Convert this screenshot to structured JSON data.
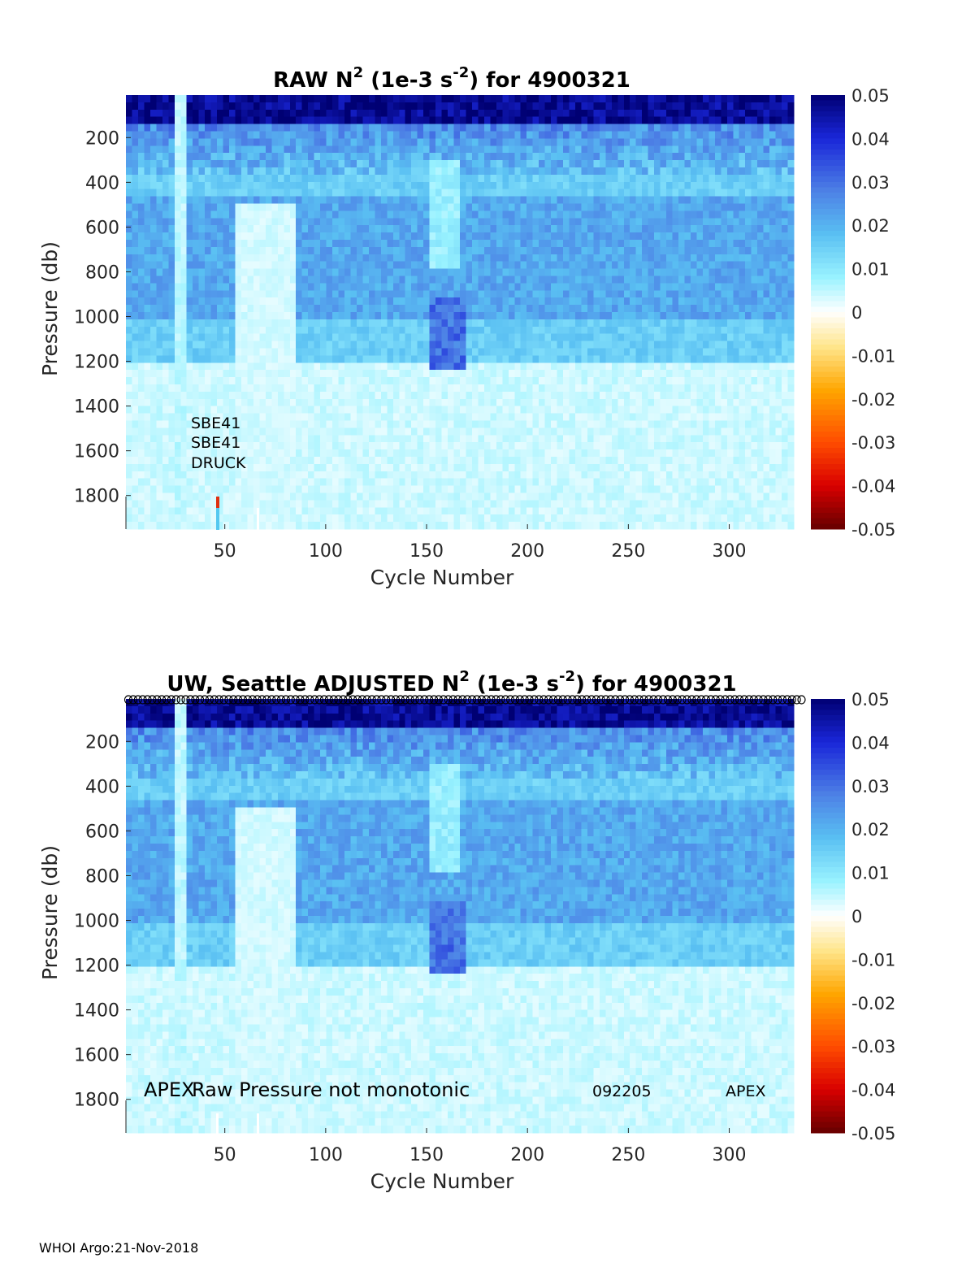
{
  "chart_data": [
    {
      "type": "heatmap",
      "title_main": "RAW N",
      "title_sup": "2",
      "title_units": " (1e-3 s",
      "title_units_sup": "-2",
      "title_tail": ") for 4900321",
      "xlabel": "Cycle Number",
      "ylabel": "Pressure (db)",
      "xlim": [
        1,
        332
      ],
      "ylim": [
        1950,
        10
      ],
      "y_reversed": true,
      "xticks": [
        50,
        100,
        150,
        200,
        250,
        300
      ],
      "yticks": [
        200,
        400,
        600,
        800,
        1000,
        1200,
        1400,
        1600,
        1800
      ],
      "colorbar": {
        "clim": [
          -0.05,
          0.05
        ],
        "ticks": [
          "0.05",
          "0.04",
          "0.03",
          "0.02",
          "0.01",
          "0",
          "-0.01",
          "-0.02",
          "-0.03",
          "-0.04",
          "-0.05"
        ]
      },
      "annotations": [
        "SBE41",
        "SBE41",
        "DRUCK"
      ]
    },
    {
      "type": "heatmap",
      "title_main": "UW, Seattle  ADJUSTED N",
      "title_sup": "2",
      "title_units": " (1e-3 s",
      "title_units_sup": "-2",
      "title_tail": ") for 4900321",
      "xlabel": "Cycle Number",
      "ylabel": "Pressure (db)",
      "xlim": [
        1,
        332
      ],
      "ylim": [
        1950,
        10
      ],
      "y_reversed": true,
      "xticks": [
        50,
        100,
        150,
        200,
        250,
        300
      ],
      "yticks": [
        200,
        400,
        600,
        800,
        1000,
        1200,
        1400,
        1600,
        1800
      ],
      "colorbar": {
        "clim": [
          -0.05,
          0.05
        ],
        "ticks": [
          "0.05",
          "0.04",
          "0.03",
          "0.02",
          "0.01",
          "0",
          "-0.01",
          "-0.02",
          "-0.03",
          "-0.04",
          "-0.05"
        ]
      },
      "annotations": [
        "APEX",
        "Raw Pressure not monotonic",
        "092205",
        "APEX"
      ]
    }
  ],
  "footer": "WHOI Argo:21-Nov-2018"
}
